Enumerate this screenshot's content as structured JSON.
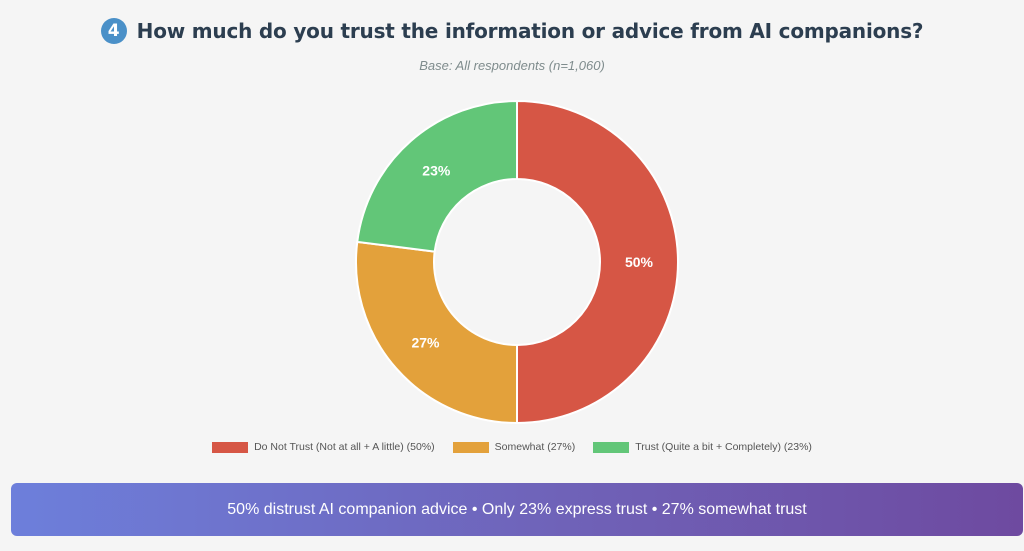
{
  "header": {
    "badge": "4",
    "title": "How much do you trust the information or advice from AI companions?",
    "subtitle": "Base: All respondents (n=1,060)"
  },
  "chart_data": {
    "type": "pie",
    "title": "How much do you trust the information or advice from AI companions?",
    "subtitle": "Base: All respondents (n=1,060)",
    "categories": [
      "Do Not Trust (Not at all + A little) (50%)",
      "Somewhat (27%)",
      "Trust (Quite a bit + Completely) (23%)"
    ],
    "values": [
      50,
      27,
      23
    ],
    "labels": [
      "50%",
      "27%",
      "23%"
    ],
    "colors": [
      "#d65645",
      "#e3a13b",
      "#62c678"
    ],
    "donut": true,
    "legend_position": "bottom"
  },
  "banner": {
    "text": "50% distrust AI companion advice • Only 23% express trust • 27% somewhat trust"
  }
}
